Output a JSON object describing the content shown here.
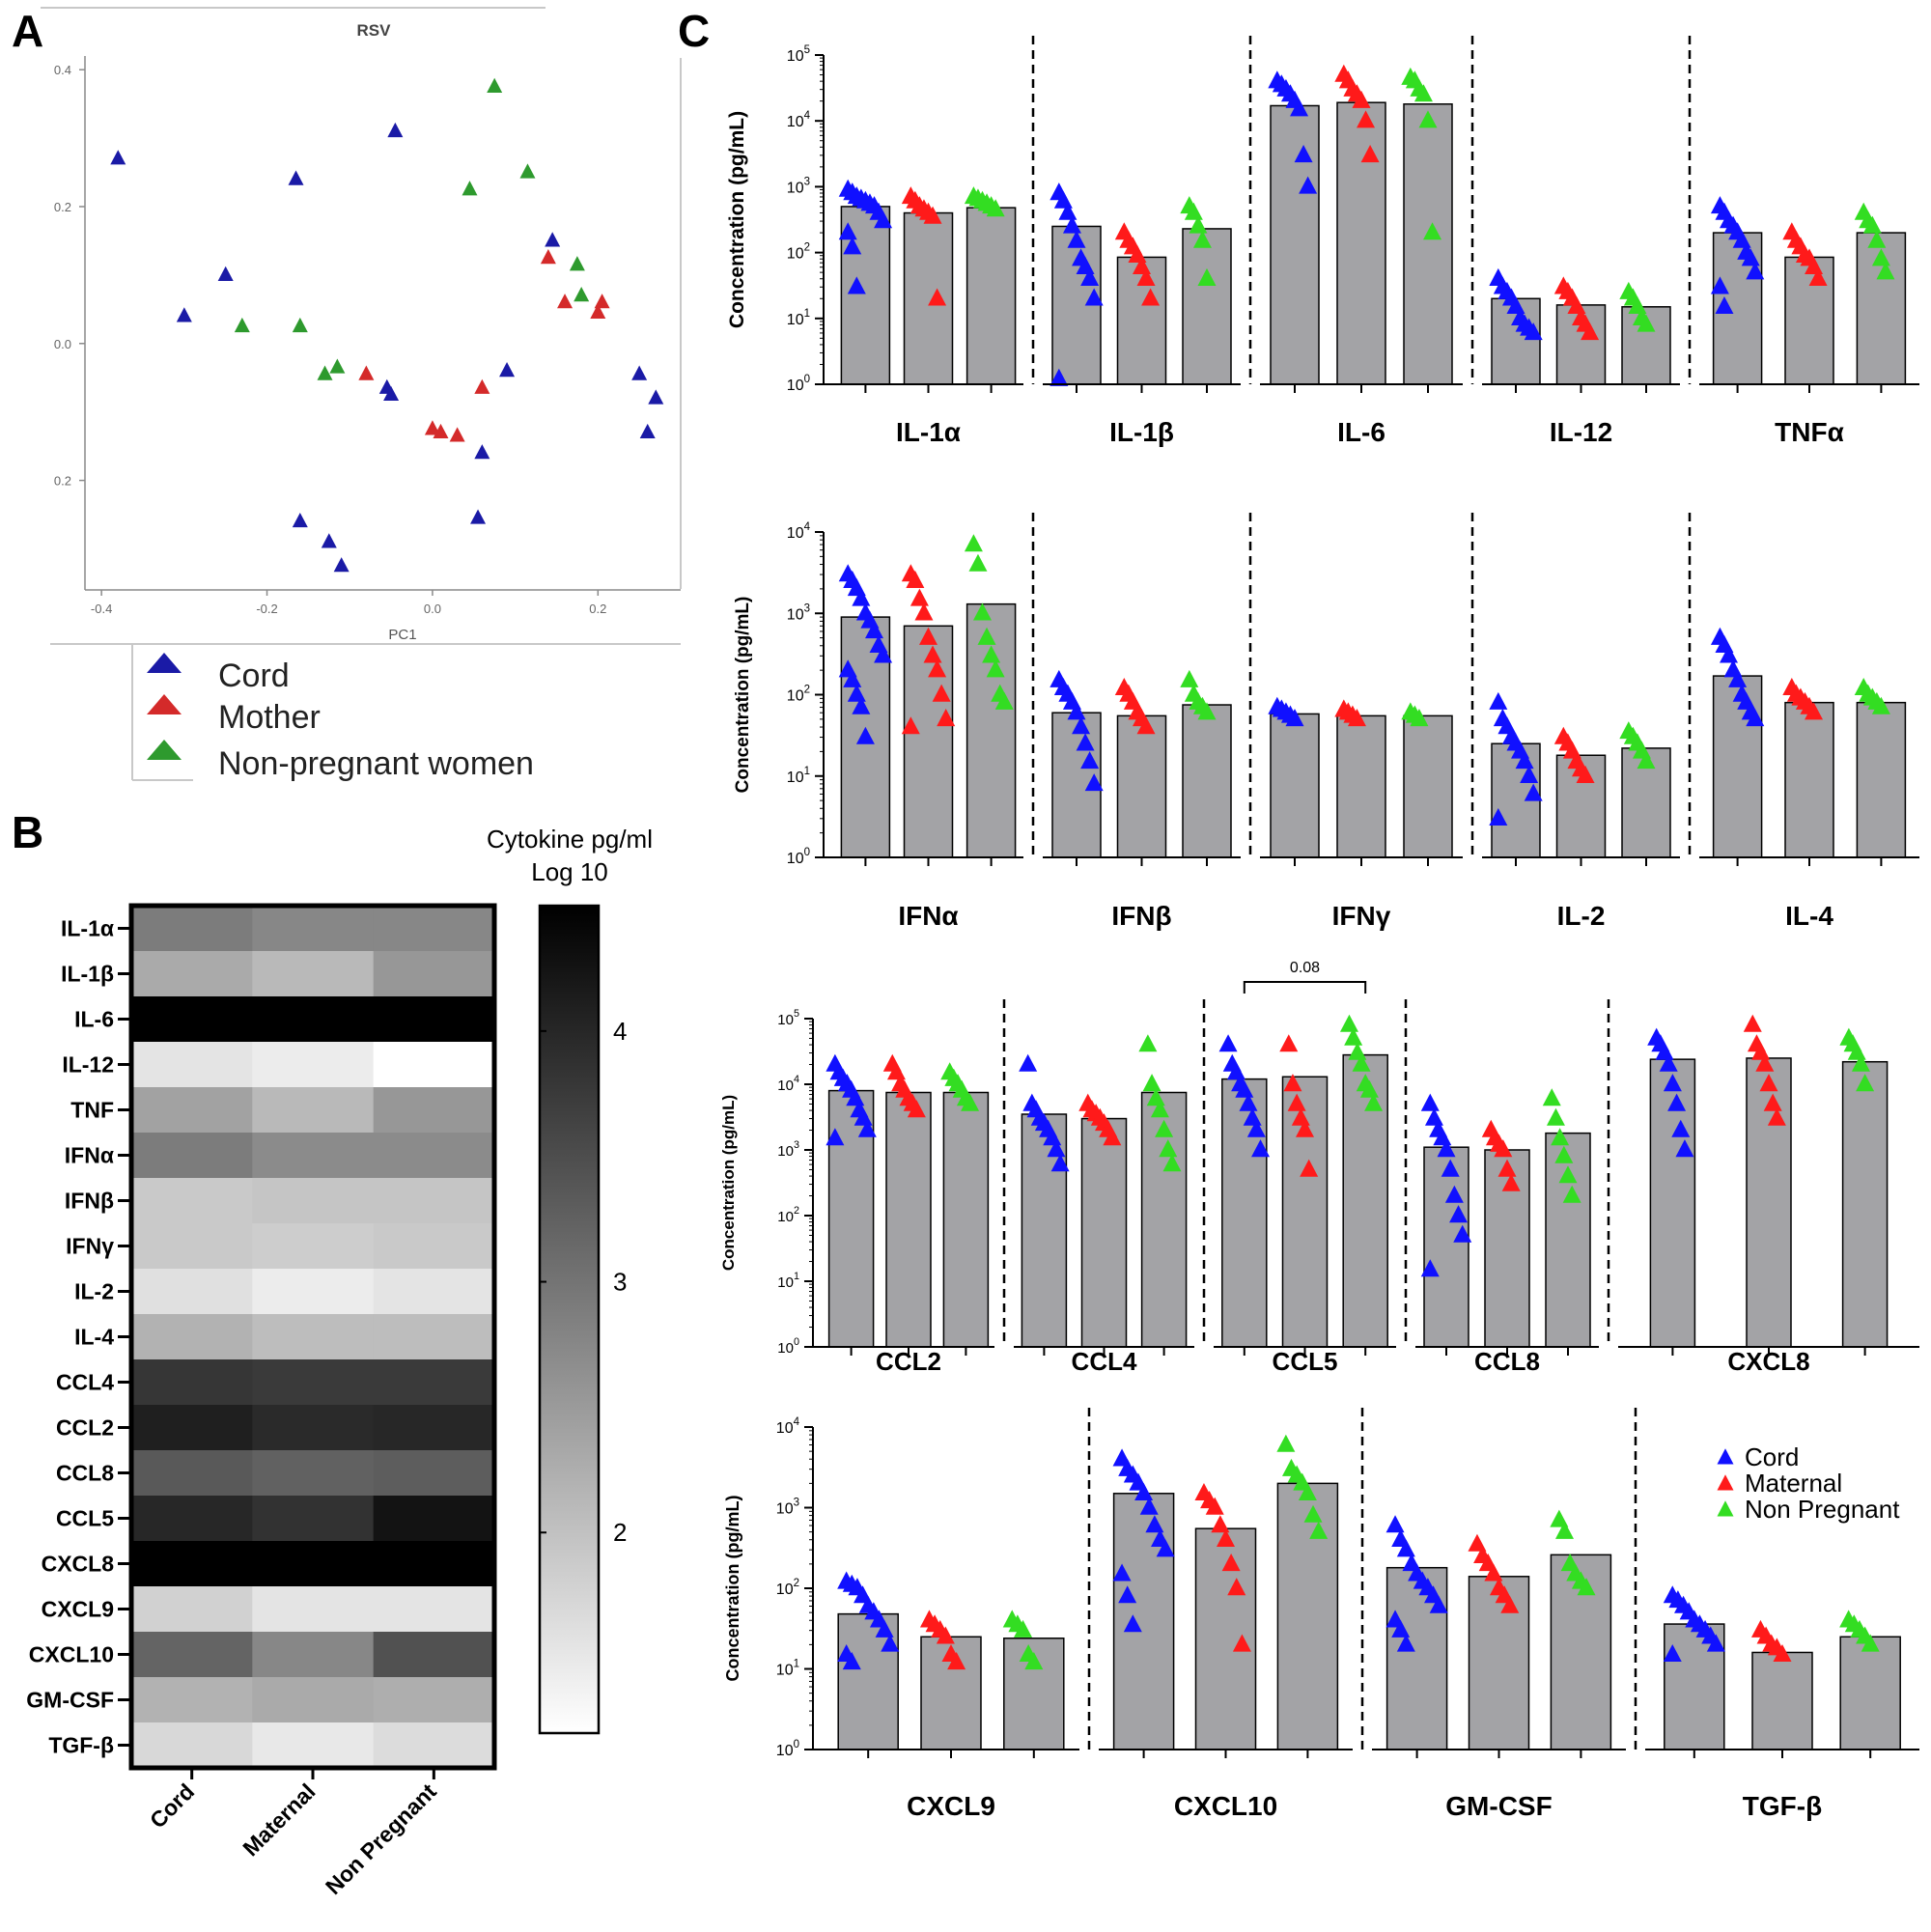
{
  "colors": {
    "cord": "#1a1aa6",
    "mother": "#d42a2a",
    "nonpregnant": "#2e9a2e",
    "cordC": "#1010ff",
    "maternalC": "#ff1a1a",
    "nonpregC": "#33dd22",
    "bar": "#a3a3a6"
  },
  "panel_labels": [
    "A",
    "B",
    "C"
  ],
  "chart_data": [
    {
      "id": "A",
      "type": "scatter",
      "title": "RSV",
      "xlabel": "PC1",
      "ylabel": "",
      "xlim": [
        -0.42,
        0.3
      ],
      "ylim": [
        -0.36,
        0.42
      ],
      "xticks": [
        -0.4,
        -0.2,
        0.0,
        0.2
      ],
      "xtick_labels": [
        "-0.4",
        "-0.2",
        "0.0",
        "0.2"
      ],
      "yticks": [
        0.4,
        0.2,
        0.0,
        -0.2
      ],
      "ytick_labels": [
        "0.4",
        "0.2",
        "0.0",
        "0.2"
      ],
      "legend_position": "bottom-left",
      "series": [
        {
          "name": "Cord",
          "points": [
            [
              -0.38,
              0.27
            ],
            [
              -0.3,
              0.04
            ],
            [
              -0.25,
              0.1
            ],
            [
              -0.165,
              0.24
            ],
            [
              -0.045,
              0.31
            ],
            [
              -0.055,
              -0.065
            ],
            [
              -0.05,
              -0.075
            ],
            [
              0.09,
              -0.04
            ],
            [
              0.145,
              0.15
            ],
            [
              0.25,
              -0.045
            ],
            [
              0.27,
              -0.08
            ],
            [
              0.26,
              -0.13
            ],
            [
              0.06,
              -0.16
            ],
            [
              -0.16,
              -0.26
            ],
            [
              -0.125,
              -0.29
            ],
            [
              -0.11,
              -0.325
            ],
            [
              0.055,
              -0.255
            ]
          ]
        },
        {
          "name": "Mother",
          "points": [
            [
              0.0,
              -0.125
            ],
            [
              0.01,
              -0.13
            ],
            [
              0.03,
              -0.135
            ],
            [
              0.06,
              -0.065
            ],
            [
              -0.08,
              -0.045
            ],
            [
              0.14,
              0.125
            ],
            [
              0.16,
              0.06
            ],
            [
              0.2,
              0.045
            ],
            [
              0.205,
              0.06
            ]
          ]
        },
        {
          "name": "Non-pregnant women",
          "points": [
            [
              -0.23,
              0.025
            ],
            [
              -0.16,
              0.025
            ],
            [
              -0.13,
              -0.045
            ],
            [
              -0.115,
              -0.035
            ],
            [
              0.045,
              0.225
            ],
            [
              0.075,
              0.375
            ],
            [
              0.115,
              0.25
            ],
            [
              0.175,
              0.115
            ],
            [
              0.18,
              0.07
            ]
          ]
        }
      ]
    },
    {
      "id": "B",
      "type": "heatmap",
      "title": "Cytokine pg/ml Log 10",
      "title_lines": [
        "Cytokine pg/ml",
        "Log 10"
      ],
      "columns": [
        "Cord",
        "Maternal",
        "Non Pregnant"
      ],
      "rows": [
        "IL-1α",
        "IL-1β",
        "IL-6",
        "IL-12",
        "TNF",
        "IFNα",
        "IFNβ",
        "IFNγ",
        "IL-2",
        "IL-4",
        "CCL4",
        "CCL2",
        "CCL8",
        "CCL5",
        "CXCL8",
        "CXCL9",
        "CXCL10",
        "GM-CSF",
        "TGF-β"
      ],
      "values": [
        [
          2.9,
          2.75,
          2.75
        ],
        [
          2.3,
          2.1,
          2.55
        ],
        [
          4.5,
          4.5,
          4.5
        ],
        [
          1.55,
          1.45,
          1.2
        ],
        [
          2.4,
          2.1,
          2.55
        ],
        [
          2.9,
          2.7,
          2.7
        ],
        [
          1.9,
          1.95,
          1.95
        ],
        [
          1.9,
          1.85,
          1.9
        ],
        [
          1.6,
          1.45,
          1.55
        ],
        [
          2.2,
          2.05,
          2.05
        ],
        [
          3.8,
          3.75,
          3.75
        ],
        [
          4.1,
          3.95,
          4.0
        ],
        [
          3.35,
          3.25,
          3.3
        ],
        [
          4.0,
          3.85,
          4.25
        ],
        [
          4.5,
          4.5,
          4.5
        ],
        [
          1.8,
          1.55,
          1.55
        ],
        [
          3.2,
          2.75,
          3.45
        ],
        [
          2.2,
          2.3,
          2.25
        ],
        [
          1.7,
          1.5,
          1.65
        ]
      ],
      "colorbar_ticks": [
        4,
        3,
        2
      ],
      "colorbar_tick_labels": [
        "4",
        "3",
        "2"
      ],
      "colorbar_range": [
        1.2,
        4.5
      ]
    },
    {
      "id": "C1",
      "type": "bar",
      "ylabel": "Concentration (pg/mL)",
      "yscale": "log",
      "ylim_log": [
        0,
        5
      ],
      "ytick_exponents": [
        0,
        1,
        2,
        3,
        4,
        5
      ],
      "ytick_base": "10",
      "groups": [
        "IL-1α",
        "IL-1β",
        "IL-6",
        "IL-12",
        "TNFα"
      ],
      "series_names": [
        "Cord",
        "Maternal",
        "Non Pregnant"
      ],
      "bar_values": [
        [
          500,
          400,
          480
        ],
        [
          250,
          85,
          230
        ],
        [
          17000,
          19000,
          18000
        ],
        [
          20,
          16,
          15
        ],
        [
          200,
          85,
          200
        ]
      ],
      "points": [
        [
          [
            900,
            800,
            700,
            650,
            600,
            550,
            500,
            400,
            300,
            200,
            120,
            30
          ],
          [
            700,
            600,
            500,
            450,
            400,
            350,
            20
          ],
          [
            700,
            650,
            600,
            550,
            500,
            450
          ]
        ],
        [
          [
            800,
            600,
            400,
            250,
            150,
            80,
            60,
            40,
            20,
            1.2
          ],
          [
            200,
            150,
            120,
            90,
            60,
            40,
            20
          ],
          [
            500,
            400,
            250,
            150,
            40
          ]
        ],
        [
          [
            40000,
            35000,
            30000,
            25000,
            20000,
            15000,
            3000,
            1000
          ],
          [
            50000,
            40000,
            30000,
            25000,
            20000,
            10000,
            3000
          ],
          [
            45000,
            40000,
            30000,
            25000,
            10000,
            200
          ]
        ],
        [
          [
            40,
            30,
            25,
            20,
            15,
            10,
            8,
            7,
            6
          ],
          [
            30,
            25,
            20,
            15,
            10,
            8,
            6
          ],
          [
            25,
            20,
            15,
            10,
            8
          ]
        ],
        [
          [
            500,
            400,
            300,
            250,
            200,
            150,
            100,
            80,
            50,
            30,
            15
          ],
          [
            200,
            150,
            120,
            90,
            80,
            60,
            40
          ],
          [
            400,
            300,
            250,
            150,
            80,
            50
          ]
        ]
      ]
    },
    {
      "id": "C2",
      "type": "bar",
      "ylabel": "Concentration (pg/mL)",
      "yscale": "log",
      "ylim_log": [
        0,
        4
      ],
      "ytick_exponents": [
        0,
        1,
        2,
        3,
        4
      ],
      "ytick_base": "10",
      "groups": [
        "IFNα",
        "IFNβ",
        "IFNγ",
        "IL-2",
        "IL-4"
      ],
      "series_names": [
        "Cord",
        "Maternal",
        "Non Pregnant"
      ],
      "bar_values": [
        [
          900,
          700,
          1300
        ],
        [
          60,
          55,
          75
        ],
        [
          58,
          55,
          55
        ],
        [
          25,
          18,
          22
        ],
        [
          170,
          80,
          80
        ]
      ],
      "points": [
        [
          [
            3000,
            2500,
            2000,
            1500,
            1000,
            800,
            600,
            400,
            300,
            200,
            150,
            100,
            70,
            30
          ],
          [
            3000,
            2500,
            1500,
            1000,
            500,
            300,
            200,
            100,
            50,
            40
          ],
          [
            7000,
            4000,
            1000,
            500,
            300,
            200,
            100,
            80
          ]
        ],
        [
          [
            150,
            120,
            100,
            80,
            60,
            40,
            25,
            15,
            8
          ],
          [
            120,
            100,
            80,
            60,
            50,
            40
          ],
          [
            150,
            100,
            80,
            70,
            60
          ]
        ],
        [
          [
            70,
            65,
            60,
            55,
            50
          ],
          [
            65,
            60,
            55,
            50
          ],
          [
            60,
            55,
            50
          ]
        ],
        [
          [
            80,
            50,
            40,
            30,
            25,
            20,
            15,
            10,
            6,
            3
          ],
          [
            30,
            25,
            20,
            15,
            12,
            10
          ],
          [
            35,
            30,
            25,
            20,
            15
          ]
        ],
        [
          [
            500,
            400,
            300,
            200,
            150,
            100,
            80,
            60,
            50
          ],
          [
            120,
            100,
            90,
            80,
            70,
            60
          ],
          [
            120,
            100,
            90,
            80,
            70
          ]
        ]
      ]
    },
    {
      "id": "C3",
      "type": "bar",
      "ylabel": "Concentration (pg/mL)",
      "yscale": "log",
      "ylim_log": [
        0,
        5
      ],
      "ytick_exponents": [
        0,
        1,
        2,
        3,
        4,
        5
      ],
      "ytick_base": "10",
      "groups": [
        "CCL2",
        "CCL4",
        "CCL5",
        "CCL8",
        "CXCL8"
      ],
      "series_names": [
        "Cord",
        "Maternal",
        "Non Pregnant"
      ],
      "bar_values": [
        [
          8000,
          7500,
          7500
        ],
        [
          3500,
          3000,
          7500
        ],
        [
          12000,
          13000,
          28000
        ],
        [
          1100,
          1000,
          1800
        ],
        [
          24000,
          25000,
          22000
        ]
      ],
      "points": [
        [
          [
            20000,
            15000,
            12000,
            10000,
            8000,
            6000,
            4000,
            3000,
            2000,
            1500
          ],
          [
            20000,
            15000,
            10000,
            8000,
            6000,
            5000,
            4000
          ],
          [
            15000,
            12000,
            10000,
            8000,
            6000,
            5000
          ]
        ],
        [
          [
            20000,
            5000,
            4000,
            3000,
            2500,
            2000,
            1500,
            1000,
            600
          ],
          [
            5000,
            4000,
            3500,
            3000,
            2500,
            2000,
            1500
          ],
          [
            40000,
            10000,
            6000,
            4000,
            2000,
            1000,
            600
          ]
        ],
        [
          [
            40000,
            20000,
            15000,
            10000,
            8000,
            5000,
            3000,
            2000,
            1000
          ],
          [
            40000,
            10000,
            5000,
            3000,
            2000,
            500
          ],
          [
            80000,
            50000,
            30000,
            20000,
            10000,
            8000,
            5000
          ]
        ],
        [
          [
            5000,
            3000,
            2000,
            1500,
            1000,
            500,
            200,
            100,
            50,
            15
          ],
          [
            2000,
            1500,
            1200,
            1000,
            500,
            300
          ],
          [
            6000,
            3000,
            1500,
            800,
            400,
            200
          ]
        ],
        [
          [
            50000,
            40000,
            30000,
            20000,
            10000,
            5000,
            2000,
            1000
          ],
          [
            80000,
            40000,
            30000,
            20000,
            10000,
            5000,
            3000
          ],
          [
            50000,
            40000,
            30000,
            20000,
            10000
          ]
        ]
      ],
      "annotation": {
        "text": "0.08",
        "group": 2,
        "from": 0,
        "to": 2
      }
    },
    {
      "id": "C4",
      "type": "bar",
      "ylabel": "Concentration (pg/mL)",
      "yscale": "log",
      "ylim_log": [
        0,
        4
      ],
      "ytick_exponents": [
        0,
        1,
        2,
        3,
        4
      ],
      "ytick_base": "10",
      "groups": [
        "CXCL9",
        "CXCL10",
        "GM-CSF",
        "TGF-β"
      ],
      "series_names": [
        "Cord",
        "Maternal",
        "Non Pregnant"
      ],
      "bar_values": [
        [
          48,
          25,
          24
        ],
        [
          1500,
          550,
          2000
        ],
        [
          180,
          140,
          260
        ],
        [
          36,
          16,
          25
        ]
      ],
      "points": [
        [
          [
            120,
            110,
            100,
            80,
            60,
            50,
            40,
            30,
            20,
            15,
            12
          ],
          [
            40,
            35,
            30,
            25,
            15,
            12
          ],
          [
            40,
            35,
            30,
            15,
            12
          ]
        ],
        [
          [
            4000,
            3000,
            2500,
            2000,
            1500,
            1000,
            600,
            400,
            300,
            150,
            80,
            35
          ],
          [
            1500,
            1200,
            1000,
            600,
            400,
            200,
            100,
            20
          ],
          [
            6000,
            3000,
            2500,
            2000,
            1500,
            800,
            500
          ]
        ],
        [
          [
            600,
            400,
            300,
            200,
            150,
            120,
            100,
            80,
            60,
            40,
            30,
            20
          ],
          [
            350,
            250,
            200,
            150,
            100,
            80,
            60
          ],
          [
            700,
            500,
            200,
            150,
            120,
            100
          ]
        ],
        [
          [
            80,
            70,
            60,
            50,
            40,
            35,
            30,
            25,
            20,
            15
          ],
          [
            30,
            25,
            20,
            18,
            15
          ],
          [
            40,
            35,
            30,
            25,
            20
          ]
        ]
      ],
      "legend": [
        "Cord",
        "Maternal",
        "Non Pregnant"
      ],
      "legend_position": "top-right"
    }
  ]
}
